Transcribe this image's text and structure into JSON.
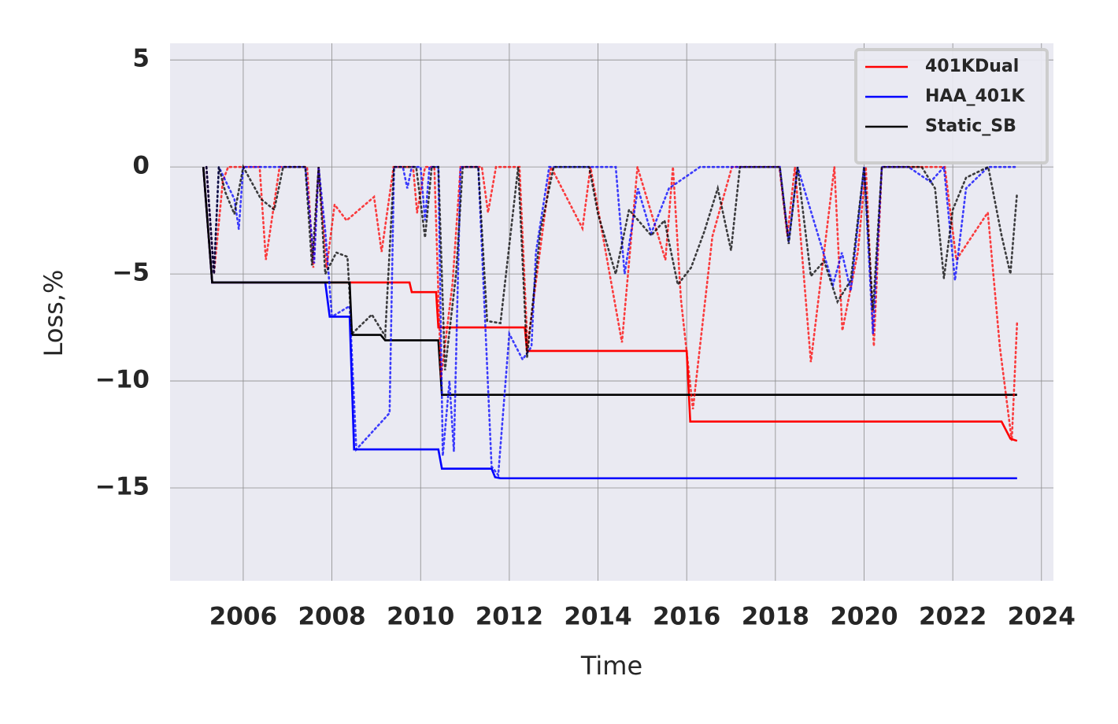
{
  "chart_data": {
    "type": "line",
    "x_label": "Time",
    "y_label": "Loss,%",
    "xlim": [
      2004.35,
      2024.27
    ],
    "ylim": [
      -19.34,
      5.78
    ],
    "xticks": [
      2006,
      2008,
      2010,
      2012,
      2014,
      2016,
      2018,
      2020,
      2022,
      2024
    ],
    "yticks": [
      {
        "value": -15,
        "label": "−15"
      },
      {
        "value": -10,
        "label": "−10"
      },
      {
        "value": -5,
        "label": "−5"
      },
      {
        "value": 0,
        "label": "0"
      },
      {
        "value": 5,
        "label": "5"
      }
    ],
    "grid": true,
    "legend": "upper right",
    "background": "#eaeaf2",
    "series": [
      {
        "name": "401KDual",
        "color": "#ff0000",
        "style": "solid",
        "x": [
          2005.1,
          2005.3,
          2009.75,
          2009.8,
          2010.35,
          2010.4,
          2012.35,
          2012.4,
          2016.0,
          2016.08,
          2023.1,
          2023.3,
          2023.45
        ],
        "values": [
          0,
          -5.4,
          -5.4,
          -5.85,
          -5.85,
          -7.5,
          -7.5,
          -8.6,
          -8.6,
          -11.9,
          -11.9,
          -12.7,
          -12.8
        ]
      },
      {
        "name": "HAA_401K",
        "color": "#0000ff",
        "style": "solid",
        "x": [
          2005.1,
          2005.3,
          2007.85,
          2007.95,
          2008.4,
          2008.5,
          2010.4,
          2010.48,
          2011.6,
          2011.68,
          2011.8,
          2023.45
        ],
        "values": [
          0,
          -5.4,
          -5.4,
          -7.0,
          -7.0,
          -13.2,
          -13.2,
          -14.1,
          -14.1,
          -14.5,
          -14.55,
          -14.55
        ]
      },
      {
        "name": "Static_SB",
        "color": "#000000",
        "style": "solid",
        "x": [
          2005.1,
          2005.3,
          2008.4,
          2008.45,
          2009.1,
          2009.2,
          2010.4,
          2010.48,
          2023.45
        ],
        "values": [
          0,
          -5.4,
          -5.4,
          -7.85,
          -7.85,
          -8.1,
          -8.1,
          -10.65,
          -10.65
        ]
      },
      {
        "color": "#ff0000",
        "style": "dotted",
        "x": [
          2005.17,
          2005.34,
          2005.54,
          2005.66,
          2006.37,
          2006.51,
          2006.82,
          2007.44,
          2007.58,
          2007.7,
          2007.88,
          2008.06,
          2008.33,
          2008.95,
          2009.12,
          2009.39,
          2009.83,
          2009.92,
          2010.1,
          2010.31,
          2010.46,
          2010.72,
          2010.9,
          2011.38,
          2011.52,
          2011.7,
          2012.23,
          2012.41,
          2012.94,
          2013.65,
          2013.83,
          2014.54,
          2014.89,
          2015.52,
          2015.69,
          2015.87,
          2016.14,
          2016.58,
          2017.02,
          2018.09,
          2018.27,
          2018.44,
          2018.8,
          2019.33,
          2019.51,
          2019.86,
          2020.04,
          2020.22,
          2020.4,
          2021.82,
          2022.08,
          2022.79,
          2023.06,
          2023.33,
          2023.45
        ],
        "values": [
          0,
          -5.0,
          -0.66,
          0,
          0,
          -4.34,
          0,
          0,
          -4.71,
          0,
          -4.71,
          -1.76,
          -2.5,
          -1.4,
          -3.97,
          0,
          0,
          -2.13,
          0,
          0,
          -9.85,
          -5.44,
          0,
          0,
          -2.13,
          0,
          0,
          -8.38,
          0,
          -2.87,
          0,
          -8.2,
          0,
          -4.34,
          0,
          -6.18,
          -11.32,
          -3.24,
          0,
          0,
          -3.24,
          0,
          -9.12,
          0,
          -7.65,
          -3.97,
          0,
          -8.38,
          0,
          0,
          -4.34,
          -2.13,
          -8.38,
          -12.79,
          -7.28
        ]
      },
      {
        "color": "#0000ff",
        "style": "dotted",
        "x": [
          2005.17,
          2005.34,
          2005.45,
          2005.8,
          2005.9,
          2006.0,
          2007.4,
          2007.6,
          2007.7,
          2007.85,
          2008.0,
          2008.4,
          2008.55,
          2009.3,
          2009.4,
          2009.6,
          2009.7,
          2009.8,
          2010.0,
          2010.1,
          2010.2,
          2010.4,
          2010.5,
          2010.65,
          2010.75,
          2010.9,
          2011.3,
          2011.6,
          2011.75,
          2012.0,
          2012.3,
          2012.5,
          2012.6,
          2012.9,
          2014.4,
          2014.6,
          2014.9,
          2015.2,
          2015.6,
          2016.3,
          2017.0,
          2018.1,
          2018.3,
          2018.5,
          2019.3,
          2019.5,
          2019.7,
          2020.0,
          2020.2,
          2020.4,
          2021.0,
          2021.5,
          2021.8,
          2022.05,
          2022.3,
          2022.8,
          2023.4
        ],
        "values": [
          0,
          -5,
          0,
          -1.5,
          -2.9,
          0,
          0,
          -4.5,
          0,
          -3,
          -7.0,
          -6.5,
          -13.2,
          -11.5,
          0,
          0,
          -1,
          0,
          0,
          -2.5,
          0,
          0,
          -13.5,
          -10,
          -13.3,
          0,
          0,
          -14,
          -14.4,
          -7.8,
          -9,
          -8.4,
          -4,
          0,
          0,
          -5,
          -1,
          -3.1,
          -1,
          0,
          0,
          0,
          -3.5,
          0,
          -5.5,
          -4,
          -5.8,
          0,
          -7.8,
          0,
          0,
          -0.7,
          0,
          -5.3,
          -1,
          0,
          0
        ]
      },
      {
        "color": "#000000",
        "style": "dotted",
        "x": [
          2005.17,
          2005.34,
          2005.45,
          2005.6,
          2005.8,
          2006.0,
          2006.4,
          2006.7,
          2006.9,
          2007.4,
          2007.55,
          2007.7,
          2007.85,
          2008.1,
          2008.35,
          2008.45,
          2008.9,
          2009.2,
          2009.4,
          2009.9,
          2010.1,
          2010.25,
          2010.4,
          2010.55,
          2010.8,
          2010.95,
          2011.3,
          2011.5,
          2011.8,
          2012.2,
          2012.4,
          2012.7,
          2013.0,
          2013.8,
          2014.0,
          2014.4,
          2014.7,
          2015.2,
          2015.5,
          2015.8,
          2016.1,
          2016.4,
          2016.7,
          2017.0,
          2017.2,
          2018.1,
          2018.3,
          2018.5,
          2018.8,
          2019.1,
          2019.4,
          2019.7,
          2020.0,
          2020.2,
          2020.4,
          2021.3,
          2021.6,
          2021.8,
          2022.0,
          2022.3,
          2022.8,
          2023.1,
          2023.3,
          2023.45
        ],
        "values": [
          0,
          -5,
          0,
          -1.2,
          -2.2,
          0,
          -1.5,
          -2,
          0,
          0,
          -4.6,
          0,
          -5,
          -4,
          -4.2,
          -7.8,
          -6.9,
          -7.9,
          0,
          0,
          -3.3,
          0,
          0,
          -9.5,
          -5,
          0,
          0,
          -7.2,
          -7.3,
          0,
          -8.9,
          -3,
          0,
          0,
          -2.2,
          -5,
          -2,
          -3.2,
          -2.5,
          -5.5,
          -4.7,
          -3,
          -1,
          -3.9,
          0,
          0,
          -3.6,
          0,
          -5.1,
          -4.4,
          -6.3,
          -5.3,
          0,
          -6.7,
          0,
          0,
          -1,
          -5.2,
          -2,
          -0.5,
          0,
          -3.2,
          -5,
          -1.2
        ]
      }
    ]
  }
}
